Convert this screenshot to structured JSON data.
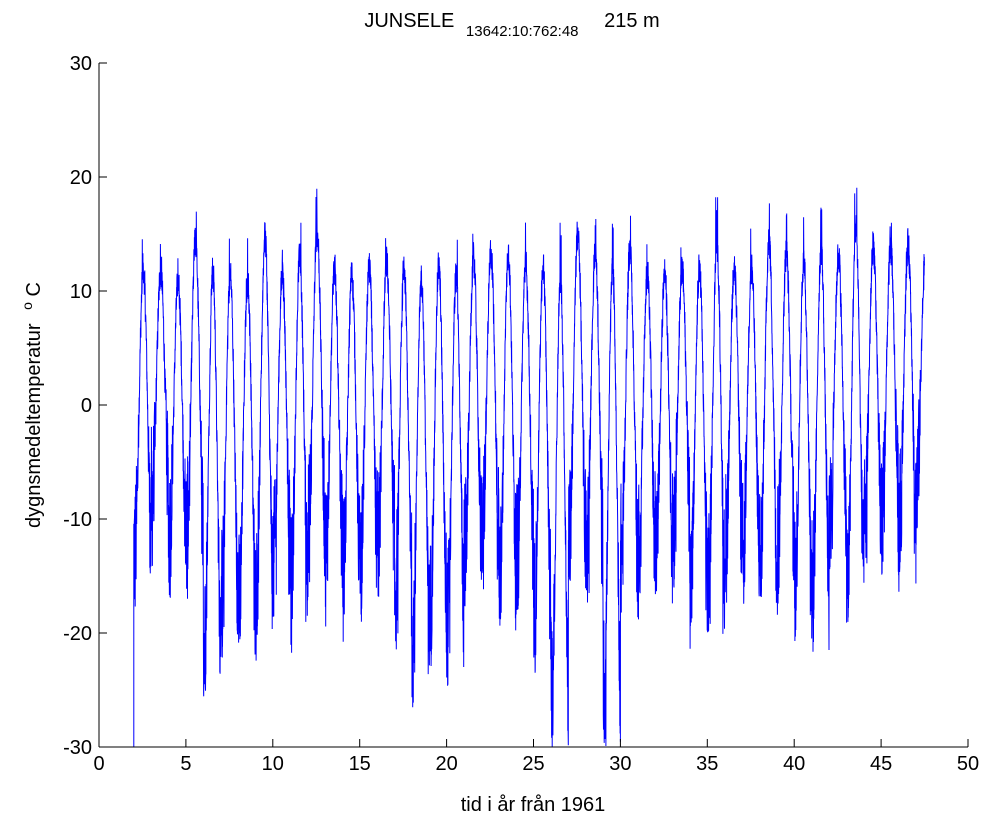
{
  "chart_data": {
    "type": "line",
    "title": {
      "station": "JUNSELE",
      "code": "13642:10:762:48",
      "elevation": "215 m"
    },
    "xlabel": "tid i år från 1961",
    "ylabel": "dygnsmedeltemperatur",
    "ylabel_unit_sup": "o",
    "ylabel_unit": "C",
    "xlim": [
      0,
      50
    ],
    "ylim": [
      -30,
      30
    ],
    "xticks": [
      "0",
      "5",
      "10",
      "15",
      "20",
      "25",
      "30",
      "35",
      "40",
      "45",
      "50"
    ],
    "yticks": [
      "30",
      "20",
      "10",
      "0",
      "-10",
      "-20",
      "-30"
    ],
    "grid": false,
    "legend": "none",
    "series": [
      {
        "color": "#0000ff",
        "x_start": 2.0,
        "x_end": 47.5,
        "start_value": -30,
        "annual_summer_max": [
          15.5,
          14.5,
          14.0,
          18.0,
          16.5,
          15.5,
          15.0,
          19.0,
          15.0,
          17.0,
          19.0,
          15.5,
          15.0,
          15.5,
          16.0,
          16.0,
          15.5,
          16.5,
          15.5,
          16.5,
          17.0,
          17.5,
          16.0,
          16.5,
          16.0,
          19.0,
          17.0,
          17.0,
          17.5,
          15.0,
          15.0,
          15.0,
          16.0,
          18.5,
          15.5,
          15.5,
          18.5,
          17.0,
          16.5,
          18.0,
          16.5,
          20.0,
          17.5,
          17.0,
          17.5,
          16.0
        ],
        "annual_winter_min": [
          -16.5,
          -11.0,
          -14.5,
          -15.0,
          -26.0,
          -21.0,
          -21.5,
          -20.5,
          -17.0,
          -20.0,
          -14.5,
          -16.5,
          -18.0,
          -17.0,
          -15.5,
          -20.5,
          -24.5,
          -22.5,
          -23.0,
          -16.5,
          -15.5,
          -19.5,
          -17.0,
          -22.5,
          -30.0,
          -16.0,
          -16.5,
          -30.0,
          -17.0,
          -16.0,
          -16.0,
          -13.5,
          -19.5,
          -20.5,
          -15.5,
          -16.5,
          -17.5,
          -16.0,
          -18.5,
          -20.5,
          -14.0,
          -20.5,
          -14.0,
          -12.5,
          -14.0,
          -10.0
        ]
      }
    ]
  }
}
